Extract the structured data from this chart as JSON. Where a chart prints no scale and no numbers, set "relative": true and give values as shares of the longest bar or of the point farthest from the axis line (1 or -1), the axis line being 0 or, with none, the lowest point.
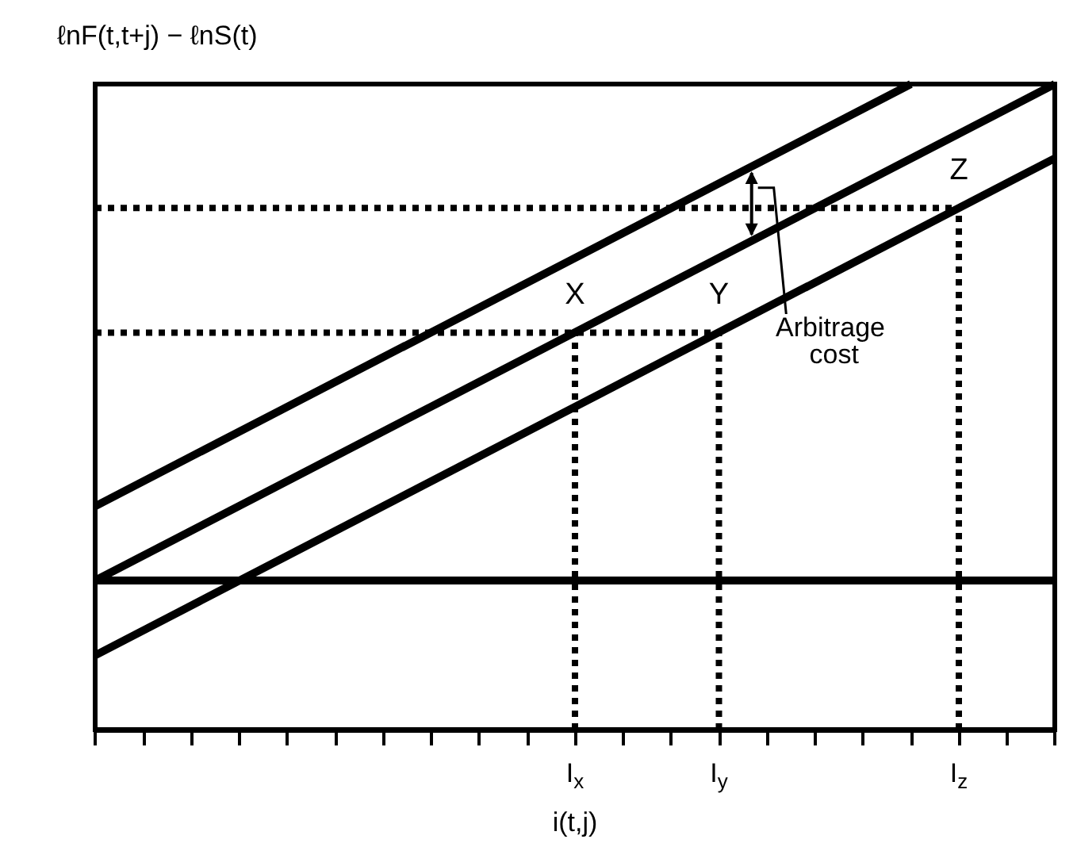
{
  "chart_data": {
    "type": "line",
    "relative": true,
    "xlabel": "i(t,j)",
    "ylabel": "ℓnF(t,t+j) − ℓnS(t)",
    "categories": [
      null,
      null,
      null,
      null,
      null,
      null,
      null,
      null,
      null,
      null,
      "I$_{x}$",
      null,
      null,
      "I$_{y}$",
      null,
      null,
      null,
      null,
      "I$_{z}$",
      null,
      null
    ],
    "series": [
      {
        "color": "#000000",
        "values": [
          0.346,
          null,
          null,
          null,
          null,
          null,
          null,
          null,
          null,
          null,
          null,
          null,
          null,
          null,
          null,
          null,
          null,
          1,
          null,
          null,
          null
        ],
        "line_style": "solid"
      },
      {
        "color": "#000000",
        "values": [
          0.231,
          null,
          null,
          null,
          null,
          null,
          null,
          null,
          null,
          null,
          null,
          null,
          null,
          null,
          null,
          null,
          null,
          null,
          null,
          null,
          1
        ],
        "line_style": "solid"
      },
      {
        "color": "#000000",
        "values": [
          0.115,
          null,
          null,
          null,
          null,
          null,
          null,
          null,
          null,
          null,
          null,
          null,
          null,
          null,
          null,
          null,
          null,
          null,
          null,
          null,
          0.885
        ],
        "line_style": "solid"
      },
      {
        "color": "#000000",
        "values": [
          0.231,
          null,
          null,
          null,
          null,
          null,
          null,
          null,
          null,
          null,
          null,
          null,
          null,
          null,
          null,
          null,
          null,
          null,
          null,
          null,
          0.231
        ],
        "line_style": "solid"
      },
      {
        "color": "#000000",
        "values": [
          0.615,
          null,
          null,
          null,
          null,
          null,
          null,
          null,
          null,
          null,
          null,
          null,
          null,
          0.615,
          null,
          null,
          null,
          null,
          null,
          null,
          null
        ],
        "line_style": "dotted"
      },
      {
        "color": "#000000",
        "x": [
          "I$_{x}$",
          "I$_{x}$"
        ],
        "values": [
          0,
          0.615
        ],
        "line_style": "dotted"
      },
      {
        "color": "#000000",
        "x": [
          "I$_{y}$",
          "I$_{y}$"
        ],
        "values": [
          0,
          0.615
        ],
        "line_style": "dotted"
      },
      {
        "color": "#000000",
        "values": [
          0.808,
          null,
          null,
          null,
          null,
          null,
          null,
          null,
          null,
          null,
          null,
          null,
          null,
          null,
          null,
          null,
          null,
          null,
          0.808,
          null,
          null
        ],
        "line_style": "dotted"
      },
      {
        "color": "#000000",
        "x": [
          "I$_{z}$",
          "I$_{z}$"
        ],
        "values": [
          0,
          0.808
        ],
        "line_style": "dotted"
      }
    ],
    "annotations": [
      {
        "text": "X",
        "x": "I$_{x}$",
        "y": 0.615
      },
      {
        "text": "Y",
        "x": "I$_{y}$",
        "y": 0.615
      },
      {
        "text": "Z",
        "x": "I$_{z}$",
        "y": 0.808
      },
      "Arbitrage cost"
    ],
    "marker": "none",
    "grid": false
  }
}
